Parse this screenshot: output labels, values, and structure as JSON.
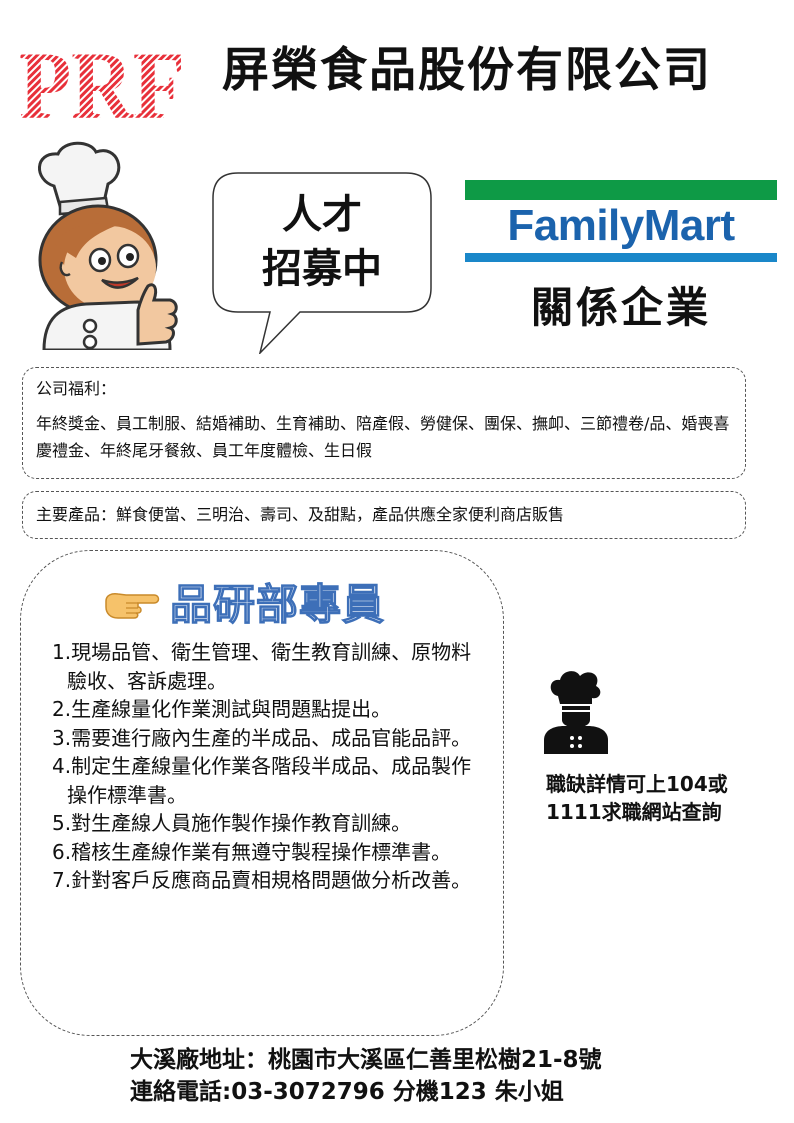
{
  "header": {
    "logo_text": "PRF",
    "company_name": "屏榮食品股份有限公司"
  },
  "bubble": {
    "line1": "人才",
    "line2": "招募中"
  },
  "partner": {
    "brand": "FamilyMart",
    "affiliation": "關係企業"
  },
  "benefits": {
    "title": "公司福利：",
    "text": "年終獎金、員工制服、結婚補助、生育補助、陪產假、勞健保、團保、撫卹、三節禮卷/品、婚喪喜慶禮金、年終尾牙餐敘、員工年度體檢、生日假"
  },
  "products": {
    "text": "主要產品：鮮食便當、三明治、壽司、及甜點，產品供應全家便利商店販售"
  },
  "job": {
    "title": "品研部專員",
    "duties": [
      "1.現場品管、衛生管理、衛生教育訓練、原物料驗收、客訴處理。",
      "2.生產線量化作業測試與問題點提出。",
      "3.需要進行廠內生產的半成品、成品官能品評。",
      "4.制定生產線量化作業各階段半成品、成品製作操作標準書。",
      "5.對生產線人員施作製作操作教育訓練。",
      "6.稽核生產線作業有無遵守製程操作標準書。",
      "7.針對客戶反應商品賣相規格問題做分析改善。"
    ]
  },
  "info": {
    "text": "職缺詳情可上104或1111求職網站查詢"
  },
  "footer": {
    "address": "大溪廠地址：桃園市大溪區仁善里松樹21-8號",
    "phone": "連絡電話:03-3072796 分機123  朱小姐"
  },
  "colors": {
    "logo_red": "#e8303a",
    "fm_green": "#0e9a46",
    "fm_blue": "#1a87c9",
    "fm_text": "#1b63ad",
    "title_outline": "#3d6fb8"
  },
  "icons": [
    "chef-mascot-illustration",
    "pointing-hand-icon",
    "chef-icon"
  ]
}
